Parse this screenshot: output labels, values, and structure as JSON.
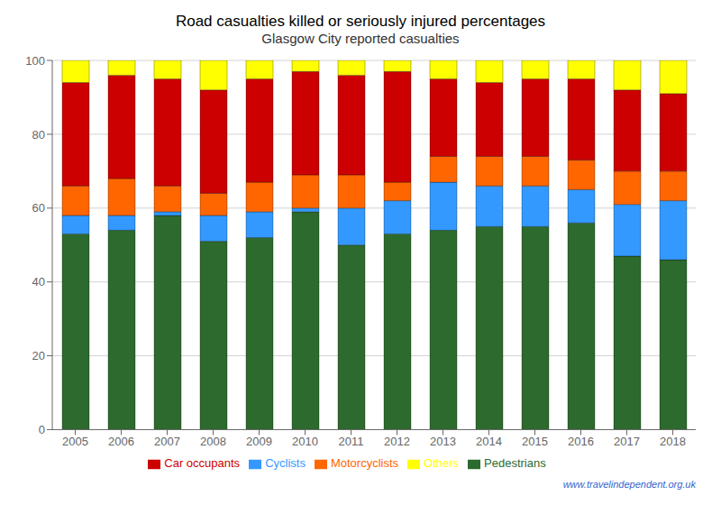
{
  "chart_data": {
    "type": "bar",
    "title": "Road casualties killed or seriously injured percentages",
    "subtitle": "Glasgow City reported casualties",
    "categories": [
      "2005",
      "2006",
      "2007",
      "2008",
      "2009",
      "2010",
      "2011",
      "2012",
      "2013",
      "2014",
      "2015",
      "2016",
      "2017",
      "2018"
    ],
    "series": [
      {
        "name": "Pedestrians",
        "color": "#2d6a2d",
        "values": [
          53,
          54,
          58,
          51,
          52,
          59,
          50,
          53,
          54,
          55,
          55,
          56,
          47,
          46
        ]
      },
      {
        "name": "Cyclists",
        "color": "#3399ff",
        "values": [
          5,
          4,
          1,
          7,
          7,
          1,
          10,
          9,
          13,
          11,
          11,
          9,
          14,
          16
        ]
      },
      {
        "name": "Motorcyclists",
        "color": "#ff6600",
        "values": [
          8,
          10,
          7,
          6,
          8,
          9,
          9,
          5,
          7,
          8,
          8,
          8,
          9,
          8
        ]
      },
      {
        "name": "Car occupants",
        "color": "#cc0000",
        "values": [
          28,
          28,
          29,
          28,
          28,
          28,
          27,
          30,
          21,
          20,
          21,
          22,
          22,
          21
        ]
      },
      {
        "name": "Others",
        "color": "#ffff00",
        "values": [
          6,
          4,
          5,
          8,
          5,
          3,
          4,
          3,
          5,
          6,
          5,
          5,
          8,
          9
        ]
      }
    ],
    "ylim": [
      0,
      100
    ],
    "yticks": [
      0,
      20,
      40,
      60,
      80,
      100
    ],
    "stacked": true,
    "grid": true,
    "legend": "bottom",
    "annotations": [
      "www.travelindependent.org.uk"
    ]
  }
}
